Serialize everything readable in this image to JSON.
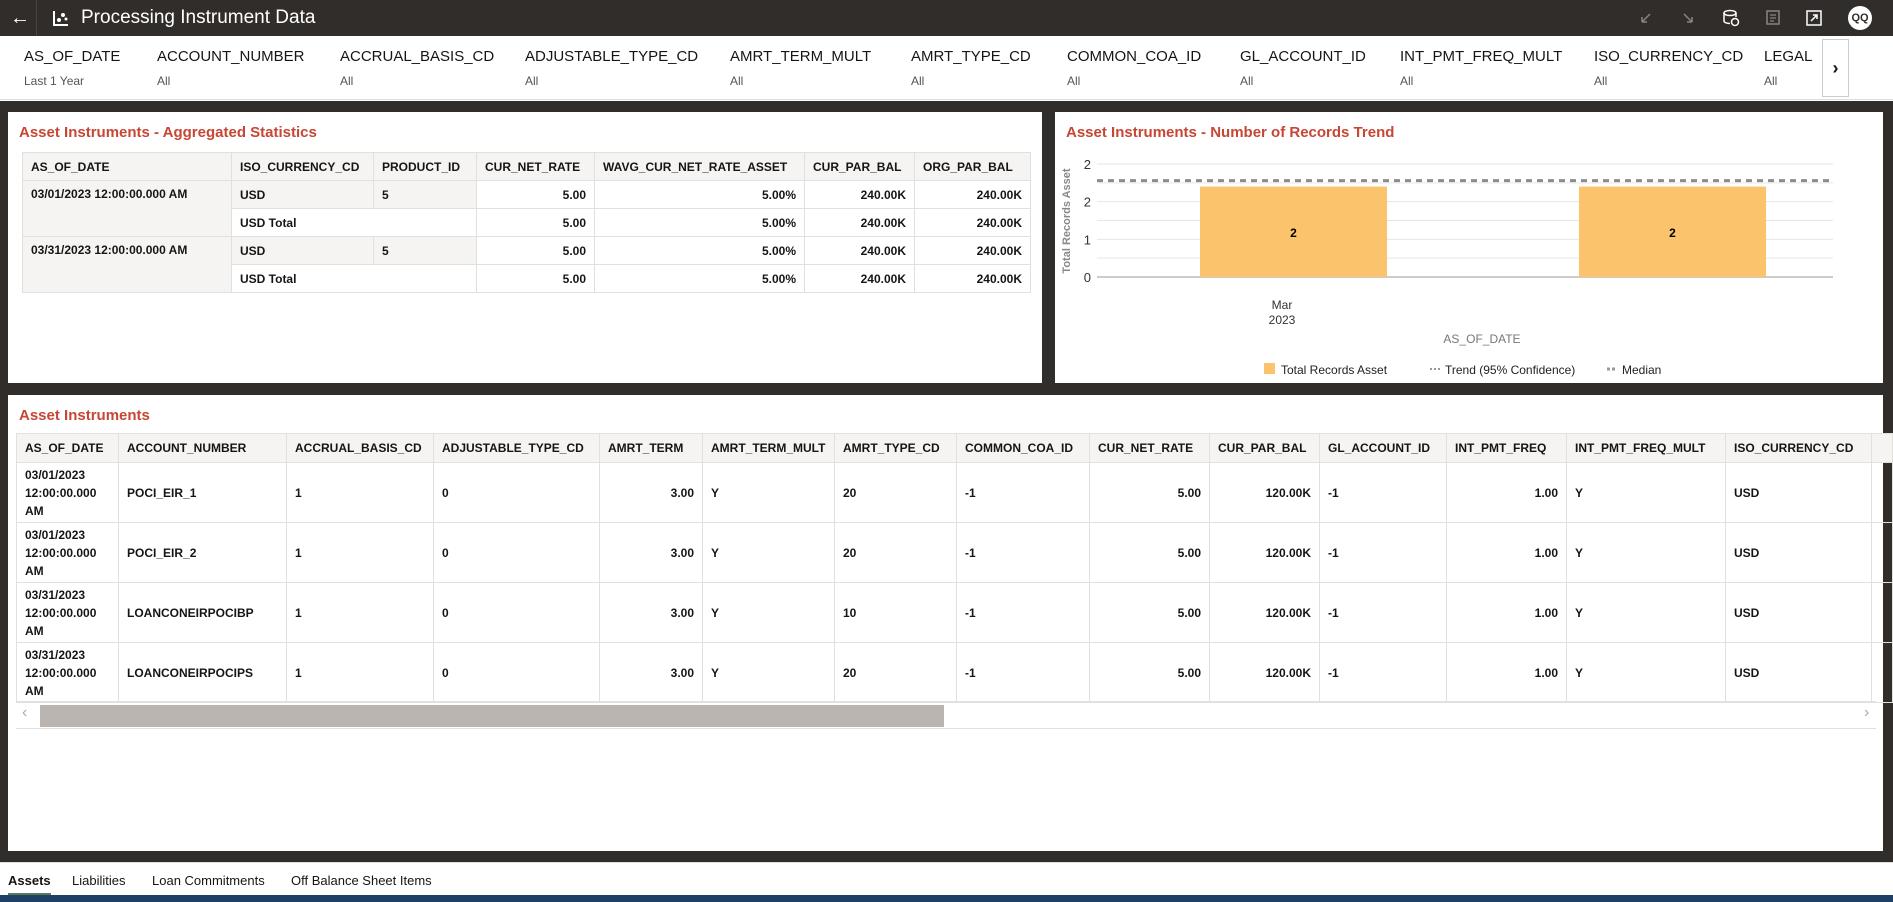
{
  "header": {
    "title": "Processing Instrument Data",
    "back_icon": "arrow-left-icon",
    "app_icon": "chart-icon",
    "icons": [
      "undo-icon",
      "redo-icon",
      "data-refresh-icon",
      "comments-icon",
      "present-icon"
    ],
    "avatar": "QQ"
  },
  "filters": [
    {
      "label": "AS_OF_DATE",
      "value": "Last 1 Year"
    },
    {
      "label": "ACCOUNT_NUMBER",
      "value": "All"
    },
    {
      "label": "ACCRUAL_BASIS_CD",
      "value": "All"
    },
    {
      "label": "ADJUSTABLE_TYPE_CD",
      "value": "All"
    },
    {
      "label": "AMRT_TERM_MULT",
      "value": "All"
    },
    {
      "label": "AMRT_TYPE_CD",
      "value": "All"
    },
    {
      "label": "COMMON_COA_ID",
      "value": "All"
    },
    {
      "label": "GL_ACCOUNT_ID",
      "value": "All"
    },
    {
      "label": "INT_PMT_FREQ_MULT",
      "value": "All"
    },
    {
      "label": "ISO_CURRENCY_CD",
      "value": "All"
    },
    {
      "label": "LEGAL",
      "value": "All"
    }
  ],
  "agg": {
    "title": "Asset Instruments - Aggregated Statistics",
    "columns": [
      "AS_OF_DATE",
      "ISO_CURRENCY_CD",
      "PRODUCT_ID",
      "CUR_NET_RATE",
      "WAVG_CUR_NET_RATE_ASSET",
      "CUR_PAR_BAL",
      "ORG_PAR_BAL"
    ],
    "groups": [
      {
        "date": "03/01/2023 12:00:00.000 AM",
        "row": [
          "USD",
          "5",
          "5.00",
          "5.00%",
          "240.00K",
          "240.00K"
        ],
        "total": [
          "USD Total",
          "5.00",
          "5.00%",
          "240.00K",
          "240.00K"
        ]
      },
      {
        "date": "03/31/2023 12:00:00.000 AM",
        "row": [
          "USD",
          "5",
          "5.00",
          "5.00%",
          "240.00K",
          "240.00K"
        ],
        "total": [
          "USD Total",
          "5.00",
          "5.00%",
          "240.00K",
          "240.00K"
        ]
      }
    ]
  },
  "chart_panel": {
    "title": "Asset Instruments - Number of Records Trend"
  },
  "chart_data": {
    "type": "bar",
    "ylabel": "Total Records Asset",
    "xlabel": "AS_OF_DATE",
    "x_tick_label": [
      "Mar",
      "2023"
    ],
    "values": [
      2,
      2
    ],
    "data_labels": [
      "2",
      "2"
    ],
    "ylim": [
      0,
      2.5
    ],
    "y_ticks": [
      0,
      0.833,
      1.667,
      2.5
    ],
    "y_tick_labels": [
      "0",
      "1",
      "2",
      "2"
    ],
    "median": 2,
    "grid": true,
    "legend_placement": "bottom",
    "legend": [
      "Total Records Asset",
      "Trend (95% Confidence)",
      "Median"
    ],
    "colors": {
      "bar": "#fbc36b",
      "median": "#8c8c8c"
    }
  },
  "list": {
    "title": "Asset Instruments",
    "columns": [
      "AS_OF_DATE",
      "ACCOUNT_NUMBER",
      "ACCRUAL_BASIS_CD",
      "ADJUSTABLE_TYPE_CD",
      "AMRT_TERM",
      "AMRT_TERM_MULT",
      "AMRT_TYPE_CD",
      "COMMON_COA_ID",
      "CUR_NET_RATE",
      "CUR_PAR_BAL",
      "GL_ACCOUNT_ID",
      "INT_PMT_FREQ",
      "INT_PMT_FREQ_MULT",
      "ISO_CURRENCY_CD"
    ],
    "rows": [
      [
        "03/01/2023 12:00:00.000 AM",
        "POCI_EIR_1",
        "1",
        "0",
        "3.00",
        "Y",
        "20",
        "-1",
        "5.00",
        "120.00K",
        "-1",
        "1.00",
        "Y",
        "USD"
      ],
      [
        "03/01/2023 12:00:00.000 AM",
        "POCI_EIR_2",
        "1",
        "0",
        "3.00",
        "Y",
        "20",
        "-1",
        "5.00",
        "120.00K",
        "-1",
        "1.00",
        "Y",
        "USD"
      ],
      [
        "03/31/2023 12:00:00.000 AM",
        "LOANCONEIRPOCIBP",
        "1",
        "0",
        "3.00",
        "Y",
        "10",
        "-1",
        "5.00",
        "120.00K",
        "-1",
        "1.00",
        "Y",
        "USD"
      ],
      [
        "03/31/2023 12:00:00.000 AM",
        "LOANCONEIRPOCIPS",
        "1",
        "0",
        "3.00",
        "Y",
        "20",
        "-1",
        "5.00",
        "120.00K",
        "-1",
        "1.00",
        "Y",
        "USD"
      ]
    ]
  },
  "tabs": [
    {
      "label": "Assets",
      "active": true
    },
    {
      "label": "Liabilities"
    },
    {
      "label": "Loan Commitments"
    },
    {
      "label": "Off Balance Sheet Items"
    }
  ],
  "colors": {
    "title_accent": "#c74634",
    "topbar": "#312d2a",
    "bottom_bar": "#1e3f66"
  }
}
